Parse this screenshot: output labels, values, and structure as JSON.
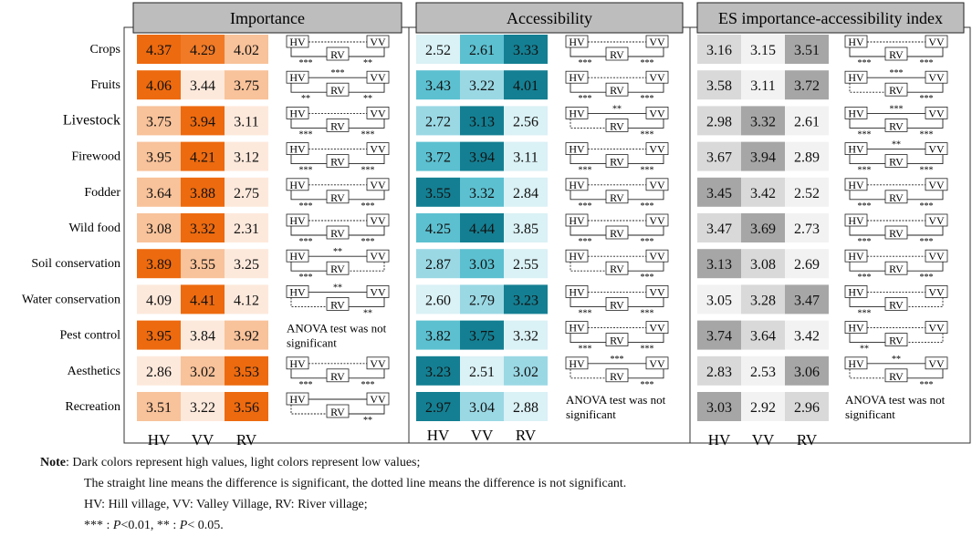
{
  "panels": [
    {
      "title": "Importance",
      "palette": [
        "#fde9dc",
        "#f8c29a",
        "#f17a26",
        "#ed6a0f"
      ],
      "values": [
        [
          4.37,
          4.29,
          4.02
        ],
        [
          4.06,
          3.44,
          3.75
        ],
        [
          3.75,
          3.94,
          3.11
        ],
        [
          3.95,
          4.21,
          3.12
        ],
        [
          3.64,
          3.88,
          2.75
        ],
        [
          3.08,
          3.32,
          2.31
        ],
        [
          3.89,
          3.55,
          3.25
        ],
        [
          4.09,
          4.41,
          4.12
        ],
        [
          3.95,
          3.84,
          3.92
        ],
        [
          2.86,
          3.02,
          3.53
        ],
        [
          3.51,
          3.22,
          3.56
        ]
      ],
      "levels": [
        [
          3,
          2,
          1
        ],
        [
          3,
          0,
          1
        ],
        [
          1,
          3,
          0
        ],
        [
          1,
          3,
          0
        ],
        [
          1,
          3,
          0
        ],
        [
          1,
          3,
          0
        ],
        [
          3,
          1,
          0
        ],
        [
          0,
          3,
          0
        ],
        [
          3,
          0,
          1
        ],
        [
          0,
          1,
          3
        ],
        [
          1,
          0,
          3
        ]
      ],
      "sig": [
        {
          "hvvv": [
            false,
            ""
          ],
          "hvrv": [
            true,
            "***"
          ],
          "vvrv": [
            true,
            "**"
          ]
        },
        {
          "hvvv": [
            true,
            "***"
          ],
          "hvrv": [
            true,
            "**"
          ],
          "vvrv": [
            true,
            "**"
          ]
        },
        {
          "hvvv": [
            false,
            ""
          ],
          "hvrv": [
            true,
            "***"
          ],
          "vvrv": [
            true,
            "***"
          ]
        },
        {
          "hvvv": [
            false,
            ""
          ],
          "hvrv": [
            true,
            "***"
          ],
          "vvrv": [
            true,
            "***"
          ]
        },
        {
          "hvvv": [
            false,
            ""
          ],
          "hvrv": [
            true,
            "***"
          ],
          "vvrv": [
            true,
            "***"
          ]
        },
        {
          "hvvv": [
            false,
            ""
          ],
          "hvrv": [
            true,
            "***"
          ],
          "vvrv": [
            true,
            "***"
          ]
        },
        {
          "hvvv": [
            true,
            "**"
          ],
          "hvrv": [
            true,
            "***"
          ],
          "vvrv": [
            false,
            ""
          ]
        },
        {
          "hvvv": [
            true,
            "**"
          ],
          "hvrv": [
            false,
            ""
          ],
          "vvrv": [
            true,
            "**"
          ]
        },
        "ANOVA test was not significant",
        {
          "hvvv": [
            false,
            ""
          ],
          "hvrv": [
            true,
            "***"
          ],
          "vvrv": [
            true,
            "***"
          ]
        },
        {
          "hvvv": [
            true,
            ""
          ],
          "hvrv": [
            false,
            ""
          ],
          "vvrv": [
            true,
            "**"
          ]
        }
      ]
    },
    {
      "title": "Accessibility",
      "palette": [
        "#daf1f5",
        "#9ad8e4",
        "#5cc0d0",
        "#147f92"
      ],
      "values": [
        [
          2.52,
          2.61,
          3.33
        ],
        [
          3.43,
          3.22,
          4.01
        ],
        [
          2.72,
          3.13,
          2.56
        ],
        [
          3.72,
          3.94,
          3.11
        ],
        [
          3.55,
          3.32,
          2.84
        ],
        [
          4.25,
          4.44,
          3.85
        ],
        [
          2.87,
          3.03,
          2.55
        ],
        [
          2.6,
          2.79,
          3.23
        ],
        [
          3.82,
          3.75,
          3.32
        ],
        [
          3.23,
          2.51,
          3.02
        ],
        [
          2.97,
          3.04,
          2.88
        ]
      ],
      "levels": [
        [
          0,
          2,
          3
        ],
        [
          2,
          1,
          3
        ],
        [
          1,
          3,
          0
        ],
        [
          2,
          3,
          0
        ],
        [
          3,
          2,
          0
        ],
        [
          2,
          3,
          0
        ],
        [
          1,
          2,
          0
        ],
        [
          0,
          1,
          3
        ],
        [
          2,
          3,
          0
        ],
        [
          3,
          0,
          1
        ],
        [
          3,
          1,
          0
        ]
      ],
      "sig": [
        {
          "hvvv": [
            false,
            ""
          ],
          "hvrv": [
            true,
            "***"
          ],
          "vvrv": [
            true,
            "***"
          ]
        },
        {
          "hvvv": [
            false,
            ""
          ],
          "hvrv": [
            true,
            "***"
          ],
          "vvrv": [
            true,
            "***"
          ]
        },
        {
          "hvvv": [
            true,
            "**"
          ],
          "hvrv": [
            false,
            ""
          ],
          "vvrv": [
            true,
            "***"
          ]
        },
        {
          "hvvv": [
            false,
            ""
          ],
          "hvrv": [
            true,
            "***"
          ],
          "vvrv": [
            true,
            "***"
          ]
        },
        {
          "hvvv": [
            false,
            ""
          ],
          "hvrv": [
            true,
            "***"
          ],
          "vvrv": [
            true,
            "***"
          ]
        },
        {
          "hvvv": [
            false,
            ""
          ],
          "hvrv": [
            true,
            "***"
          ],
          "vvrv": [
            true,
            "***"
          ]
        },
        {
          "hvvv": [
            false,
            ""
          ],
          "hvrv": [
            false,
            ""
          ],
          "vvrv": [
            true,
            "***"
          ]
        },
        {
          "hvvv": [
            false,
            ""
          ],
          "hvrv": [
            true,
            "***"
          ],
          "vvrv": [
            true,
            "***"
          ]
        },
        {
          "hvvv": [
            false,
            ""
          ],
          "hvrv": [
            true,
            "***"
          ],
          "vvrv": [
            true,
            "***"
          ]
        },
        {
          "hvvv": [
            true,
            "***"
          ],
          "hvrv": [
            false,
            ""
          ],
          "vvrv": [
            true,
            "***"
          ]
        },
        "ANOVA test was not significant"
      ]
    },
    {
      "title": "ES importance-accessibility index",
      "palette": [
        "#f2f2f2",
        "#d9d9d9",
        "#bfbfbf",
        "#a6a6a6"
      ],
      "values": [
        [
          3.16,
          3.15,
          3.51
        ],
        [
          3.58,
          3.11,
          3.72
        ],
        [
          2.98,
          3.32,
          2.61
        ],
        [
          3.67,
          3.94,
          2.89
        ],
        [
          3.45,
          3.42,
          2.52
        ],
        [
          3.47,
          3.69,
          2.73
        ],
        [
          3.13,
          3.08,
          2.69
        ],
        [
          3.05,
          3.28,
          3.47
        ],
        [
          3.74,
          3.64,
          3.42
        ],
        [
          2.83,
          2.53,
          3.06
        ],
        [
          3.03,
          2.92,
          2.96
        ]
      ],
      "levels": [
        [
          1,
          0,
          3
        ],
        [
          1,
          0,
          3
        ],
        [
          1,
          3,
          0
        ],
        [
          1,
          3,
          0
        ],
        [
          3,
          1,
          0
        ],
        [
          1,
          3,
          0
        ],
        [
          3,
          1,
          0
        ],
        [
          0,
          1,
          3
        ],
        [
          3,
          1,
          0
        ],
        [
          1,
          0,
          3
        ],
        [
          3,
          0,
          1
        ]
      ],
      "sig": [
        {
          "hvvv": [
            false,
            ""
          ],
          "hvrv": [
            true,
            "***"
          ],
          "vvrv": [
            true,
            "***"
          ]
        },
        {
          "hvvv": [
            true,
            "***"
          ],
          "hvrv": [
            false,
            ""
          ],
          "vvrv": [
            true,
            "***"
          ]
        },
        {
          "hvvv": [
            true,
            "***"
          ],
          "hvrv": [
            true,
            "***"
          ],
          "vvrv": [
            true,
            "***"
          ]
        },
        {
          "hvvv": [
            true,
            "**"
          ],
          "hvrv": [
            true,
            "***"
          ],
          "vvrv": [
            true,
            "***"
          ]
        },
        {
          "hvvv": [
            false,
            ""
          ],
          "hvrv": [
            true,
            "***"
          ],
          "vvrv": [
            true,
            "***"
          ]
        },
        {
          "hvvv": [
            false,
            ""
          ],
          "hvrv": [
            true,
            "***"
          ],
          "vvrv": [
            true,
            "***"
          ]
        },
        {
          "hvvv": [
            false,
            ""
          ],
          "hvrv": [
            true,
            "***"
          ],
          "vvrv": [
            true,
            "***"
          ]
        },
        {
          "hvvv": [
            false,
            ""
          ],
          "hvrv": [
            true,
            "***"
          ],
          "vvrv": [
            false,
            ""
          ]
        },
        {
          "hvvv": [
            false,
            ""
          ],
          "hvrv": [
            true,
            "**"
          ],
          "vvrv": [
            false,
            ""
          ]
        },
        {
          "hvvv": [
            true,
            "**"
          ],
          "hvrv": [
            false,
            ""
          ],
          "vvrv": [
            true,
            "***"
          ]
        },
        "ANOVA test was not significant"
      ]
    }
  ],
  "chart_data": {
    "type": "heatmap",
    "rows": [
      "Crops",
      "Fruits",
      "Livestock",
      "Firewood",
      "Fodder",
      "Wild food",
      "Soil conservation",
      "Water conservation",
      "Pest control",
      "Aesthetics",
      "Recreation"
    ],
    "columns": [
      "HV",
      "VV",
      "RV"
    ],
    "bracket_labels": {
      "hv": "HV",
      "vv": "VV",
      "rv": "RV"
    },
    "panel_titles": [
      "Importance",
      "Accessibility",
      "ES importance-accessibility index"
    ]
  },
  "notes": {
    "label": "Note",
    "line1": ": Dark colors represent high values, light colors represent low values;",
    "line2": "The straight line means the difference is significant, the dotted line means the difference is not significant.",
    "line3": "HV: Hill village, VV: Valley Village, RV: River village;",
    "line4_stars3": "*** : ",
    "line4_p": "P",
    "line4_mid": "<0.01, ** : ",
    "line4_end": "< 0.05."
  }
}
